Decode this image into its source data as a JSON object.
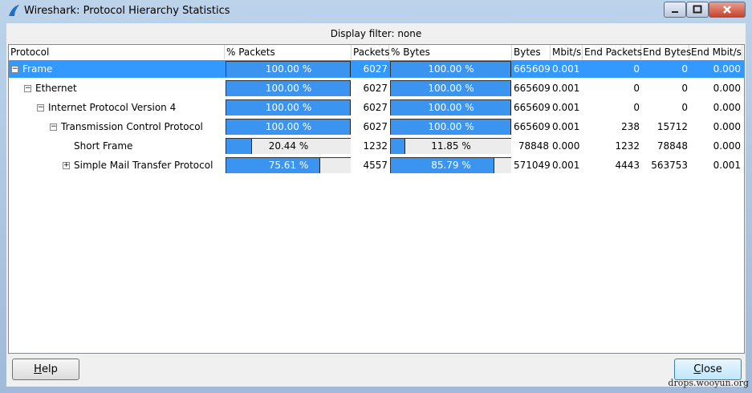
{
  "window": {
    "title": "Wireshark: Protocol Hierarchy Statistics"
  },
  "display_filter": "Display filter: none",
  "table": {
    "columns": [
      "Protocol",
      "% Packets",
      "Packets",
      "% Bytes",
      "Bytes",
      "Mbit/s",
      "End Packets",
      "End Bytes",
      "End Mbit/s"
    ],
    "rows": [
      {
        "protocol": "Frame",
        "selected": true,
        "expanded": true,
        "pct_packets": {
          "value": 100,
          "label": "100.00 %"
        },
        "packets": "6027",
        "pct_bytes": {
          "value": 100,
          "label": "100.00 %"
        },
        "bytes": "665609",
        "mbits": "0.001",
        "end_packets": "0",
        "end_bytes": "0",
        "end_mbits": "0.000",
        "children": [
          {
            "protocol": "Ethernet",
            "expanded": true,
            "pct_packets": {
              "value": 100,
              "label": "100.00 %"
            },
            "packets": "6027",
            "pct_bytes": {
              "value": 100,
              "label": "100.00 %"
            },
            "bytes": "665609",
            "mbits": "0.001",
            "end_packets": "0",
            "end_bytes": "0",
            "end_mbits": "0.000",
            "children": [
              {
                "protocol": "Internet Protocol Version 4",
                "expanded": true,
                "pct_packets": {
                  "value": 100,
                  "label": "100.00 %"
                },
                "packets": "6027",
                "pct_bytes": {
                  "value": 100,
                  "label": "100.00 %"
                },
                "bytes": "665609",
                "mbits": "0.001",
                "end_packets": "0",
                "end_bytes": "0",
                "end_mbits": "0.000",
                "children": [
                  {
                    "protocol": "Transmission Control Protocol",
                    "expanded": true,
                    "pct_packets": {
                      "value": 100,
                      "label": "100.00 %"
                    },
                    "packets": "6027",
                    "pct_bytes": {
                      "value": 100,
                      "label": "100.00 %"
                    },
                    "bytes": "665609",
                    "mbits": "0.001",
                    "end_packets": "238",
                    "end_bytes": "15712",
                    "end_mbits": "0.000",
                    "children": [
                      {
                        "protocol": "Short Frame",
                        "pct_packets": {
                          "value": 20.44,
                          "label": "20.44 %"
                        },
                        "packets": "1232",
                        "pct_bytes": {
                          "value": 11.85,
                          "label": "11.85 %"
                        },
                        "bytes": "78848",
                        "mbits": "0.000",
                        "end_packets": "1232",
                        "end_bytes": "78848",
                        "end_mbits": "0.000"
                      },
                      {
                        "protocol": "Simple Mail Transfer Protocol",
                        "expanded": false,
                        "pct_packets": {
                          "value": 75.61,
                          "label": "75.61 %"
                        },
                        "packets": "4557",
                        "pct_bytes": {
                          "value": 85.79,
                          "label": "85.79 %"
                        },
                        "bytes": "571049",
                        "mbits": "0.001",
                        "end_packets": "4443",
                        "end_bytes": "563753",
                        "end_mbits": "0.001"
                      }
                    ]
                  }
                ]
              }
            ]
          }
        ]
      }
    ]
  },
  "buttons": {
    "help": "Help",
    "close": "Close"
  },
  "watermark": "drops.wooyun.org"
}
